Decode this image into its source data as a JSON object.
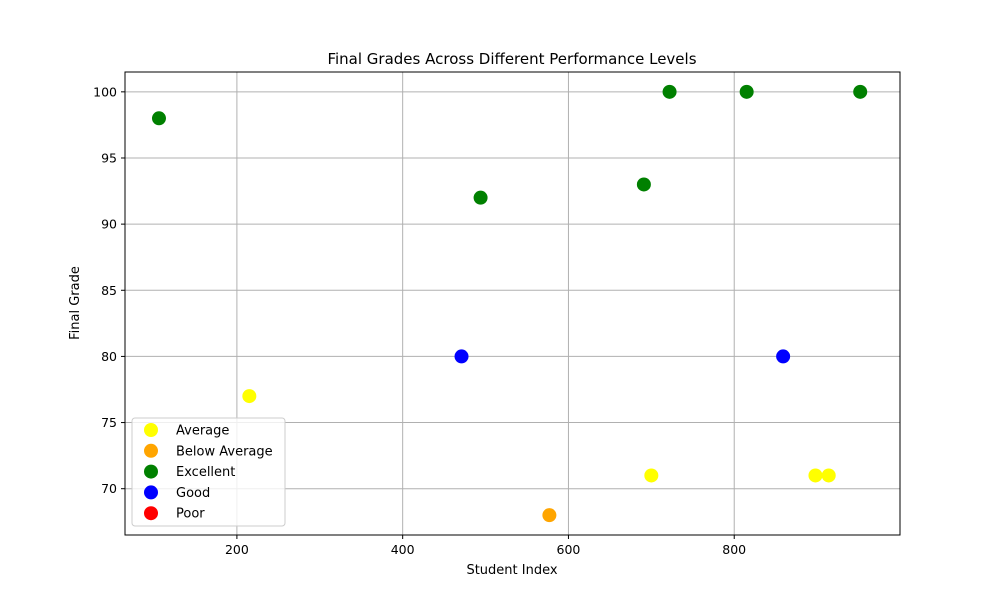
{
  "chart_data": {
    "type": "scatter",
    "title": "Final Grades Across Different Performance Levels",
    "xlabel": "Student Index",
    "ylabel": "Final Grade",
    "xlim": [
      65,
      1000
    ],
    "ylim": [
      66.5,
      101.5
    ],
    "xticks": [
      200,
      400,
      600,
      800
    ],
    "yticks": [
      70,
      75,
      80,
      85,
      90,
      95,
      100
    ],
    "grid": true,
    "legend_position": "lower-left",
    "series": [
      {
        "name": "Average",
        "color": "#ffff00",
        "points": [
          [
            215,
            77
          ],
          [
            700,
            71
          ],
          [
            898,
            71
          ],
          [
            914,
            71
          ]
        ]
      },
      {
        "name": "Below Average",
        "color": "#ffa500",
        "points": [
          [
            577,
            68
          ]
        ]
      },
      {
        "name": "Excellent",
        "color": "#008000",
        "points": [
          [
            106,
            98
          ],
          [
            494,
            92
          ],
          [
            691,
            93
          ],
          [
            722,
            100
          ],
          [
            815,
            100
          ],
          [
            952,
            100
          ]
        ]
      },
      {
        "name": "Good",
        "color": "#0000ff",
        "points": [
          [
            471,
            80
          ],
          [
            859,
            80
          ]
        ]
      },
      {
        "name": "Poor",
        "color": "#ff0000",
        "points": []
      }
    ]
  }
}
